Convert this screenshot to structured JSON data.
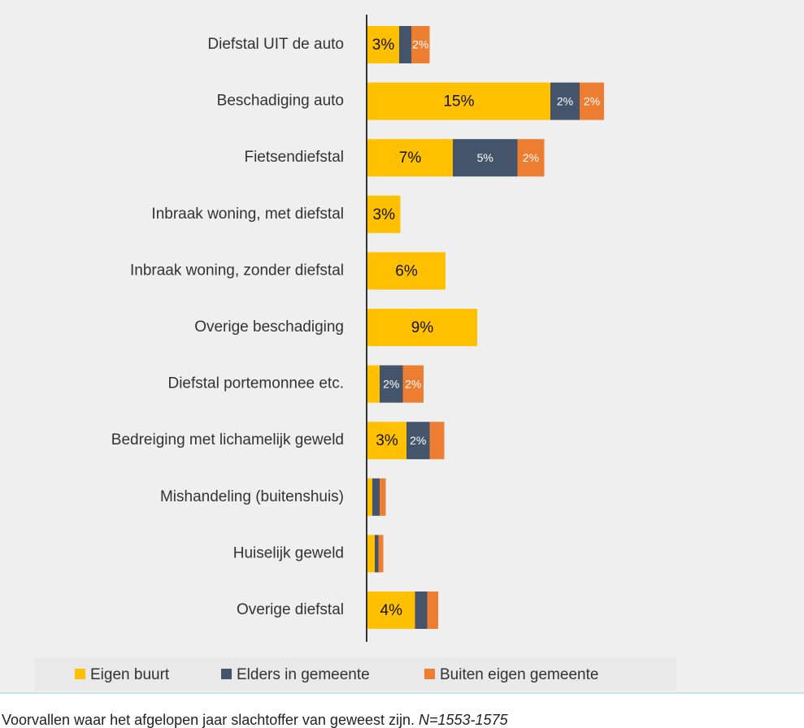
{
  "chart_data": {
    "type": "stacked-hbar",
    "categories": [
      "Diefstal UIT de auto",
      "Beschadiging auto",
      "Fietsendiefstal",
      "Inbraak woning, met diefstal",
      "Inbraak woning, zonder diefstal",
      "Overige beschadiging",
      "Diefstal portemonnee etc.",
      "Bedreiging met lichamelijk geweld",
      "Mishandeling (buitenshuis)",
      "Huiselijk geweld",
      "Overige diefstal"
    ],
    "series": [
      {
        "name": "Eigen buurt",
        "color": "#ffc000",
        "values": [
          2.6,
          15,
          7,
          2.7,
          6.4,
          9,
          1.0,
          3.2,
          0.4,
          0.6,
          3.9
        ],
        "value_labels": [
          "3%",
          "15%",
          "7%",
          "3%",
          "6%",
          "9%",
          null,
          "3%",
          null,
          null,
          "4%"
        ]
      },
      {
        "name": "Elders in gemeente",
        "color": "#44546a",
        "values": [
          1.0,
          2.4,
          5.3,
          0,
          0,
          0,
          1.9,
          1.9,
          0.6,
          0.3,
          1.0
        ],
        "value_labels": [
          null,
          "2%",
          "5%",
          null,
          null,
          null,
          "2%",
          "2%",
          null,
          null,
          null
        ]
      },
      {
        "name": "Buiten eigen gemeente",
        "color": "#ed7d31",
        "values": [
          1.5,
          2.0,
          2.2,
          0,
          0,
          0,
          1.7,
          1.2,
          0.5,
          0.4,
          0.9
        ],
        "value_labels": [
          "2%",
          "2%",
          "2%",
          null,
          null,
          null,
          "2%",
          null,
          null,
          null,
          null
        ]
      }
    ],
    "caption": {
      "text": "Voorvallen waar het afgelopen jaar slachtoffer van geweest zijn.",
      "note": "N=1553-1575"
    }
  }
}
